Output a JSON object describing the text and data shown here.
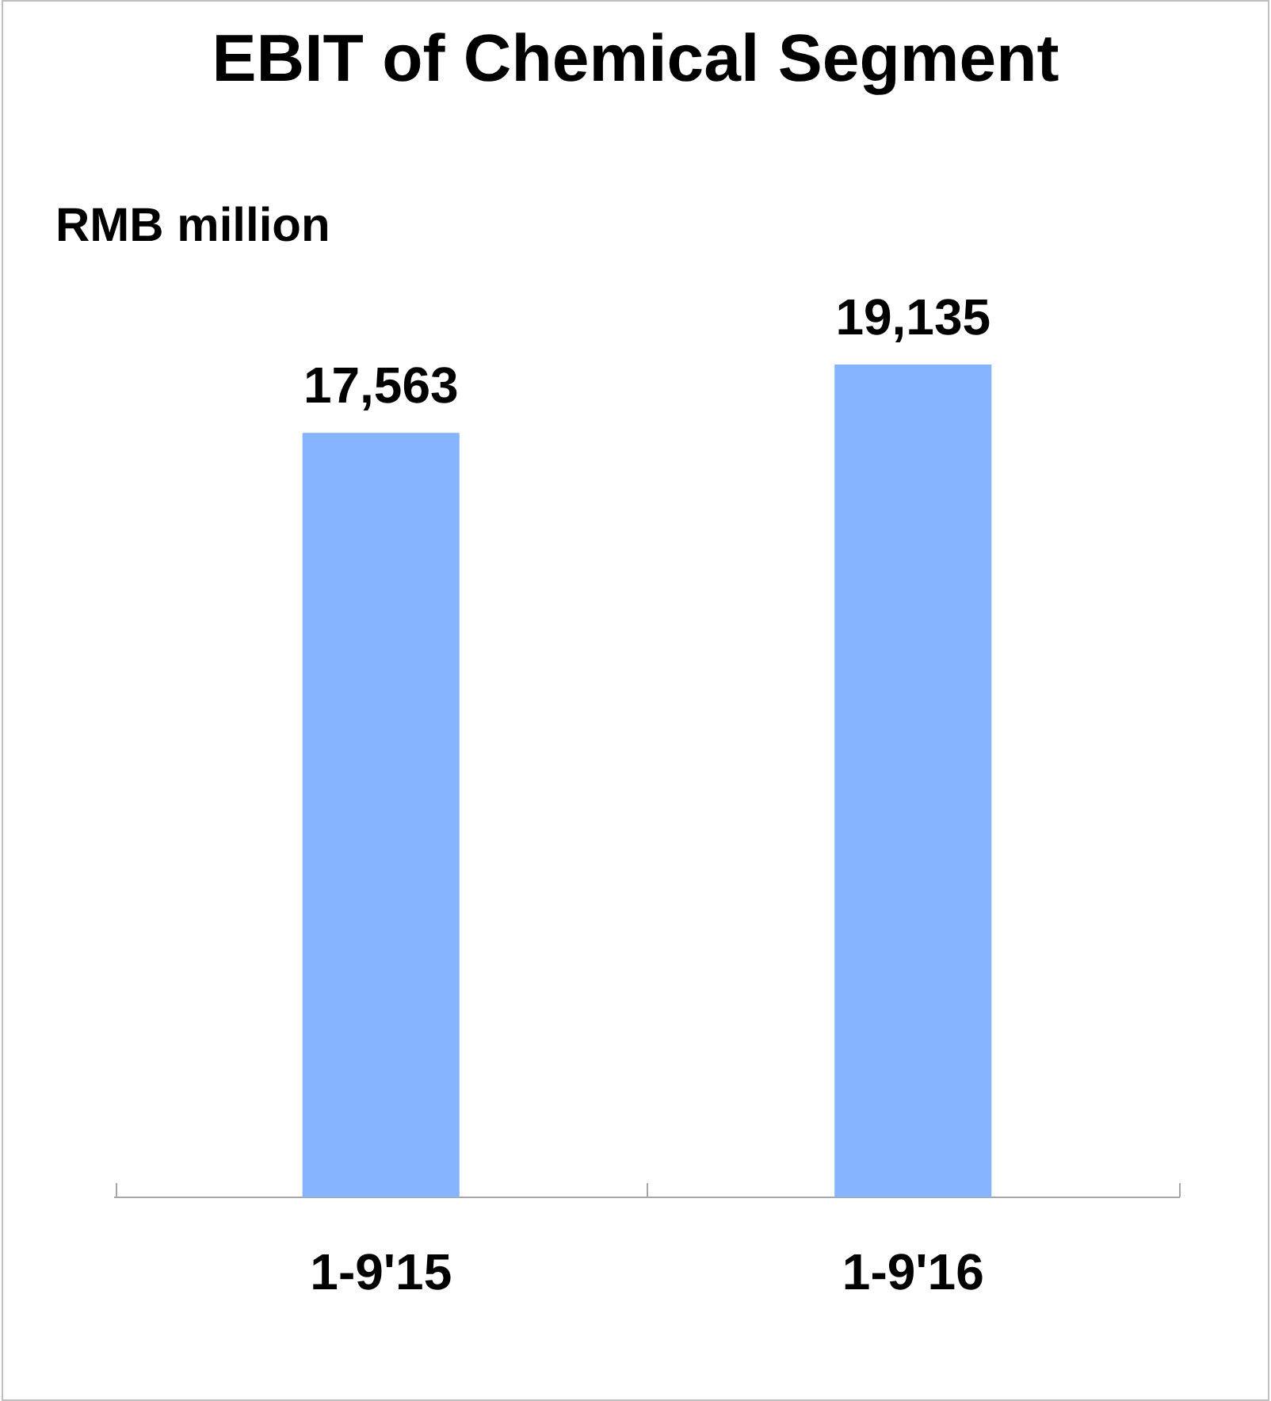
{
  "chart_data": {
    "type": "bar",
    "title": "EBIT of Chemical Segment",
    "ylabel": "RMB million",
    "categories": [
      "1-9'15",
      "1-9'16"
    ],
    "values": [
      17563,
      19135
    ],
    "value_labels": [
      "17,563",
      "19,135"
    ],
    "color": "#86b4ff"
  }
}
